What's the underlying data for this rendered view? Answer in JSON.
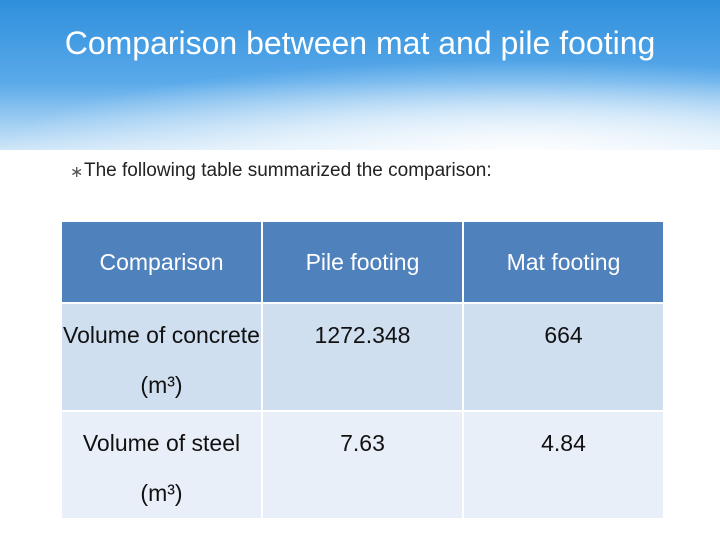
{
  "header": {
    "title": "Comparison between mat and pile footing"
  },
  "bullet": "The following table summarized the comparison:",
  "table": {
    "columns": [
      "Comparison",
      "Pile footing",
      "Mat footing"
    ],
    "rows": [
      [
        "Volume of concrete (m³)",
        "1272.348",
        "664"
      ],
      [
        "Volume of steel (m³)",
        "7.63",
        "4.84"
      ]
    ]
  }
}
